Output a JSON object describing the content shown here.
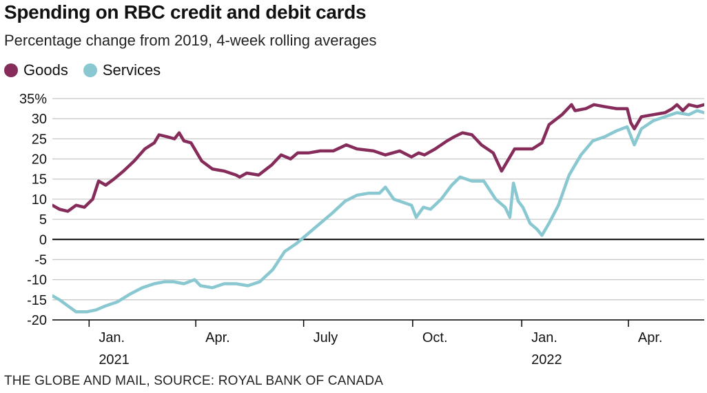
{
  "source": "THE GLOBE AND MAIL, SOURCE: ROYAL BANK OF CANADA",
  "chart_data": {
    "type": "line",
    "title": "Spending on RBC credit and debit cards",
    "subtitle": "Percentage change from 2019, 4-week rolling averages",
    "xlabel": "",
    "ylabel": "",
    "ylim": [
      -20,
      35
    ],
    "yticks": [
      35,
      30,
      25,
      20,
      15,
      10,
      5,
      0,
      -5,
      -10,
      -15,
      -20
    ],
    "ytick_labels": [
      "35%",
      "30",
      "25",
      "20",
      "15",
      "10",
      "5",
      "0",
      "-5",
      "-10",
      "-15",
      "-20"
    ],
    "xlim": [
      "2020-12-01",
      "2022-06-04"
    ],
    "xticks": [
      {
        "date": "2021-01-01",
        "label": "Jan.",
        "year": "2021"
      },
      {
        "date": "2021-04-01",
        "label": "Apr.",
        "year": ""
      },
      {
        "date": "2021-07-01",
        "label": "July",
        "year": ""
      },
      {
        "date": "2021-10-01",
        "label": "Oct.",
        "year": ""
      },
      {
        "date": "2022-01-01",
        "label": "Jan.",
        "year": "2022"
      },
      {
        "date": "2022-04-01",
        "label": "Apr.",
        "year": ""
      }
    ],
    "grid": true,
    "legend_position": "top-left",
    "series": [
      {
        "name": "Goods",
        "color": "#862c5a",
        "points": [
          [
            "2020-12-01",
            8.5
          ],
          [
            "2020-12-07",
            7.5
          ],
          [
            "2020-12-14",
            7.0
          ],
          [
            "2020-12-21",
            8.5
          ],
          [
            "2020-12-28",
            8.0
          ],
          [
            "2021-01-04",
            10.0
          ],
          [
            "2021-01-09",
            14.5
          ],
          [
            "2021-01-15",
            13.5
          ],
          [
            "2021-01-22",
            15.0
          ],
          [
            "2021-01-30",
            17.0
          ],
          [
            "2021-02-08",
            19.5
          ],
          [
            "2021-02-17",
            22.5
          ],
          [
            "2021-02-25",
            24.0
          ],
          [
            "2021-03-01",
            26.0
          ],
          [
            "2021-03-08",
            25.5
          ],
          [
            "2021-03-14",
            25.0
          ],
          [
            "2021-03-18",
            26.5
          ],
          [
            "2021-03-22",
            24.5
          ],
          [
            "2021-03-28",
            24.0
          ],
          [
            "2021-04-06",
            19.5
          ],
          [
            "2021-04-15",
            17.5
          ],
          [
            "2021-04-25",
            17.0
          ],
          [
            "2021-05-05",
            16.0
          ],
          [
            "2021-05-08",
            15.5
          ],
          [
            "2021-05-14",
            16.5
          ],
          [
            "2021-05-24",
            16.0
          ],
          [
            "2021-06-04",
            18.5
          ],
          [
            "2021-06-12",
            21.0
          ],
          [
            "2021-06-20",
            20.0
          ],
          [
            "2021-06-26",
            21.5
          ],
          [
            "2021-07-05",
            21.5
          ],
          [
            "2021-07-15",
            22.0
          ],
          [
            "2021-07-26",
            22.0
          ],
          [
            "2021-08-06",
            23.5
          ],
          [
            "2021-08-15",
            22.5
          ],
          [
            "2021-08-29",
            22.0
          ],
          [
            "2021-09-08",
            21.0
          ],
          [
            "2021-09-20",
            22.0
          ],
          [
            "2021-09-30",
            20.5
          ],
          [
            "2021-10-06",
            21.5
          ],
          [
            "2021-10-11",
            21.0
          ],
          [
            "2021-10-20",
            22.5
          ],
          [
            "2021-10-30",
            24.5
          ],
          [
            "2021-11-05",
            25.5
          ],
          [
            "2021-11-12",
            26.5
          ],
          [
            "2021-11-20",
            26.0
          ],
          [
            "2021-11-28",
            23.5
          ],
          [
            "2021-12-08",
            21.5
          ],
          [
            "2021-12-15",
            17.0
          ],
          [
            "2021-12-20",
            19.5
          ],
          [
            "2021-12-26",
            22.5
          ],
          [
            "2022-01-02",
            22.5
          ],
          [
            "2022-01-10",
            22.5
          ],
          [
            "2022-01-18",
            24.0
          ],
          [
            "2022-01-24",
            28.5
          ],
          [
            "2022-02-04",
            31.0
          ],
          [
            "2022-02-12",
            33.5
          ],
          [
            "2022-02-15",
            32.0
          ],
          [
            "2022-02-24",
            32.5
          ],
          [
            "2022-03-03",
            33.5
          ],
          [
            "2022-03-12",
            33.0
          ],
          [
            "2022-03-22",
            32.5
          ],
          [
            "2022-03-31",
            32.5
          ],
          [
            "2022-04-03",
            29.0
          ],
          [
            "2022-04-06",
            27.5
          ],
          [
            "2022-04-12",
            30.5
          ],
          [
            "2022-04-22",
            31.0
          ],
          [
            "2022-05-02",
            31.5
          ],
          [
            "2022-05-08",
            32.5
          ],
          [
            "2022-05-12",
            33.5
          ],
          [
            "2022-05-17",
            32.0
          ],
          [
            "2022-05-22",
            33.5
          ],
          [
            "2022-05-29",
            33.0
          ],
          [
            "2022-06-04",
            33.5
          ]
        ]
      },
      {
        "name": "Services",
        "color": "#89c8d0",
        "points": [
          [
            "2020-12-01",
            -14.0
          ],
          [
            "2020-12-07",
            -15.0
          ],
          [
            "2020-12-14",
            -16.5
          ],
          [
            "2020-12-21",
            -18.0
          ],
          [
            "2020-12-30",
            -18.0
          ],
          [
            "2021-01-07",
            -17.5
          ],
          [
            "2021-01-15",
            -16.5
          ],
          [
            "2021-01-25",
            -15.5
          ],
          [
            "2021-02-05",
            -13.5
          ],
          [
            "2021-02-15",
            -12.0
          ],
          [
            "2021-02-25",
            -11.0
          ],
          [
            "2021-03-06",
            -10.5
          ],
          [
            "2021-03-13",
            -10.5
          ],
          [
            "2021-03-22",
            -11.0
          ],
          [
            "2021-03-31",
            -10.0
          ],
          [
            "2021-04-05",
            -11.5
          ],
          [
            "2021-04-15",
            -12.0
          ],
          [
            "2021-04-25",
            -11.0
          ],
          [
            "2021-05-05",
            -11.0
          ],
          [
            "2021-05-15",
            -11.5
          ],
          [
            "2021-05-25",
            -10.5
          ],
          [
            "2021-06-05",
            -7.5
          ],
          [
            "2021-06-15",
            -3.0
          ],
          [
            "2021-06-25",
            -1.0
          ],
          [
            "2021-07-05",
            1.5
          ],
          [
            "2021-07-15",
            4.0
          ],
          [
            "2021-07-25",
            6.5
          ],
          [
            "2021-08-05",
            9.5
          ],
          [
            "2021-08-15",
            11.0
          ],
          [
            "2021-08-25",
            11.5
          ],
          [
            "2021-09-03",
            11.5
          ],
          [
            "2021-09-08",
            13.0
          ],
          [
            "2021-09-15",
            10.0
          ],
          [
            "2021-09-25",
            9.0
          ],
          [
            "2021-09-30",
            8.5
          ],
          [
            "2021-10-04",
            5.5
          ],
          [
            "2021-10-10",
            8.0
          ],
          [
            "2021-10-16",
            7.5
          ],
          [
            "2021-10-25",
            10.0
          ],
          [
            "2021-11-03",
            13.5
          ],
          [
            "2021-11-10",
            15.5
          ],
          [
            "2021-11-20",
            14.5
          ],
          [
            "2021-11-30",
            14.5
          ],
          [
            "2021-12-10",
            10.0
          ],
          [
            "2021-12-18",
            8.0
          ],
          [
            "2021-12-22",
            5.5
          ],
          [
            "2021-12-25",
            14.0
          ],
          [
            "2021-12-29",
            9.5
          ],
          [
            "2022-01-02",
            8.0
          ],
          [
            "2022-01-08",
            4.0
          ],
          [
            "2022-01-14",
            2.5
          ],
          [
            "2022-01-18",
            1.0
          ],
          [
            "2022-01-24",
            4.0
          ],
          [
            "2022-02-01",
            8.5
          ],
          [
            "2022-02-10",
            16.0
          ],
          [
            "2022-02-20",
            21.0
          ],
          [
            "2022-03-02",
            24.5
          ],
          [
            "2022-03-12",
            25.5
          ],
          [
            "2022-03-22",
            27.0
          ],
          [
            "2022-03-31",
            28.0
          ],
          [
            "2022-04-06",
            23.5
          ],
          [
            "2022-04-12",
            27.5
          ],
          [
            "2022-04-22",
            29.5
          ],
          [
            "2022-05-02",
            30.5
          ],
          [
            "2022-05-12",
            31.5
          ],
          [
            "2022-05-22",
            31.0
          ],
          [
            "2022-05-29",
            32.0
          ],
          [
            "2022-06-04",
            31.5
          ]
        ]
      }
    ]
  }
}
